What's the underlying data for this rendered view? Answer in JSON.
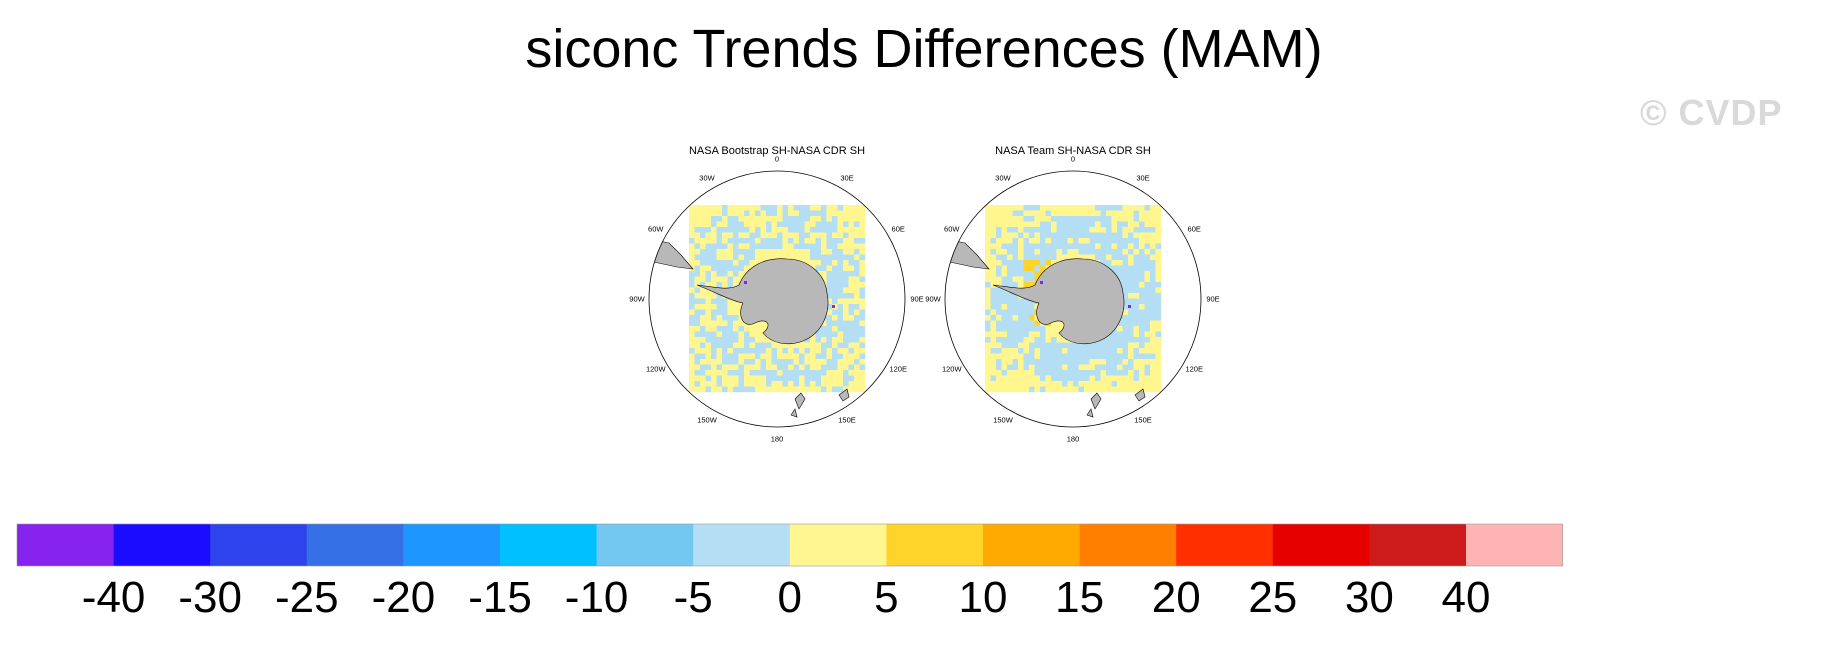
{
  "title": "siconc Trends Differences (MAM)",
  "watermark": "© CVDP",
  "colors": {
    "land": "#b8b8b8",
    "ocean": "#ffffff",
    "outline": "#000000"
  },
  "chart_data": [
    {
      "type": "heatmap",
      "projection": "polar-stereographic-south",
      "title": "NASA Bootstrap SH-NASA CDR SH",
      "lon_labels": [
        "0",
        "30E",
        "60E",
        "90E",
        "120E",
        "150E",
        "180",
        "150W",
        "120W",
        "90W",
        "60W",
        "30W"
      ],
      "dominant_bins": [
        {
          "range": "0 to 5",
          "color": "#fff68f"
        },
        {
          "range": "-5 to 0",
          "color": "#b4def3"
        }
      ],
      "notes": "Widespread small positive differences (0–5) across the domain, with a ring of small negative differences (-5–0) around the Antarctic sea-ice edge; isolated -40 pixels near the coast."
    },
    {
      "type": "heatmap",
      "projection": "polar-stereographic-south",
      "title": "NASA Team SH-NASA CDR SH",
      "lon_labels": [
        "0",
        "30E",
        "60E",
        "90E",
        "120E",
        "150E",
        "180",
        "150W",
        "120W",
        "90W",
        "60W",
        "30W"
      ],
      "dominant_bins": [
        {
          "range": "0 to 5",
          "color": "#fff68f"
        },
        {
          "range": "-5 to 0",
          "color": "#b4def3"
        },
        {
          "range": "5 to 10",
          "color": "#ffd42a"
        }
      ],
      "notes": "Broad ring of small negative differences (-5–0) encircling the continent, small positive differences (0–5) elsewhere, and a few 5–10 pixels in the Weddell Sea."
    }
  ],
  "colorbar": {
    "labels": [
      "-40",
      "-30",
      "-25",
      "-20",
      "-15",
      "-10",
      "-5",
      "0",
      "5",
      "10",
      "15",
      "20",
      "25",
      "30",
      "40"
    ],
    "colors": [
      "#8623ee",
      "#1a0dff",
      "#2e43ec",
      "#3570e6",
      "#1d97ff",
      "#00c0ff",
      "#73c8f2",
      "#b4def3",
      "#fff68f",
      "#ffd42a",
      "#ffaa00",
      "#ff7f00",
      "#ff3000",
      "#e60000",
      "#cd1a1a",
      "#ffb4b4"
    ]
  }
}
